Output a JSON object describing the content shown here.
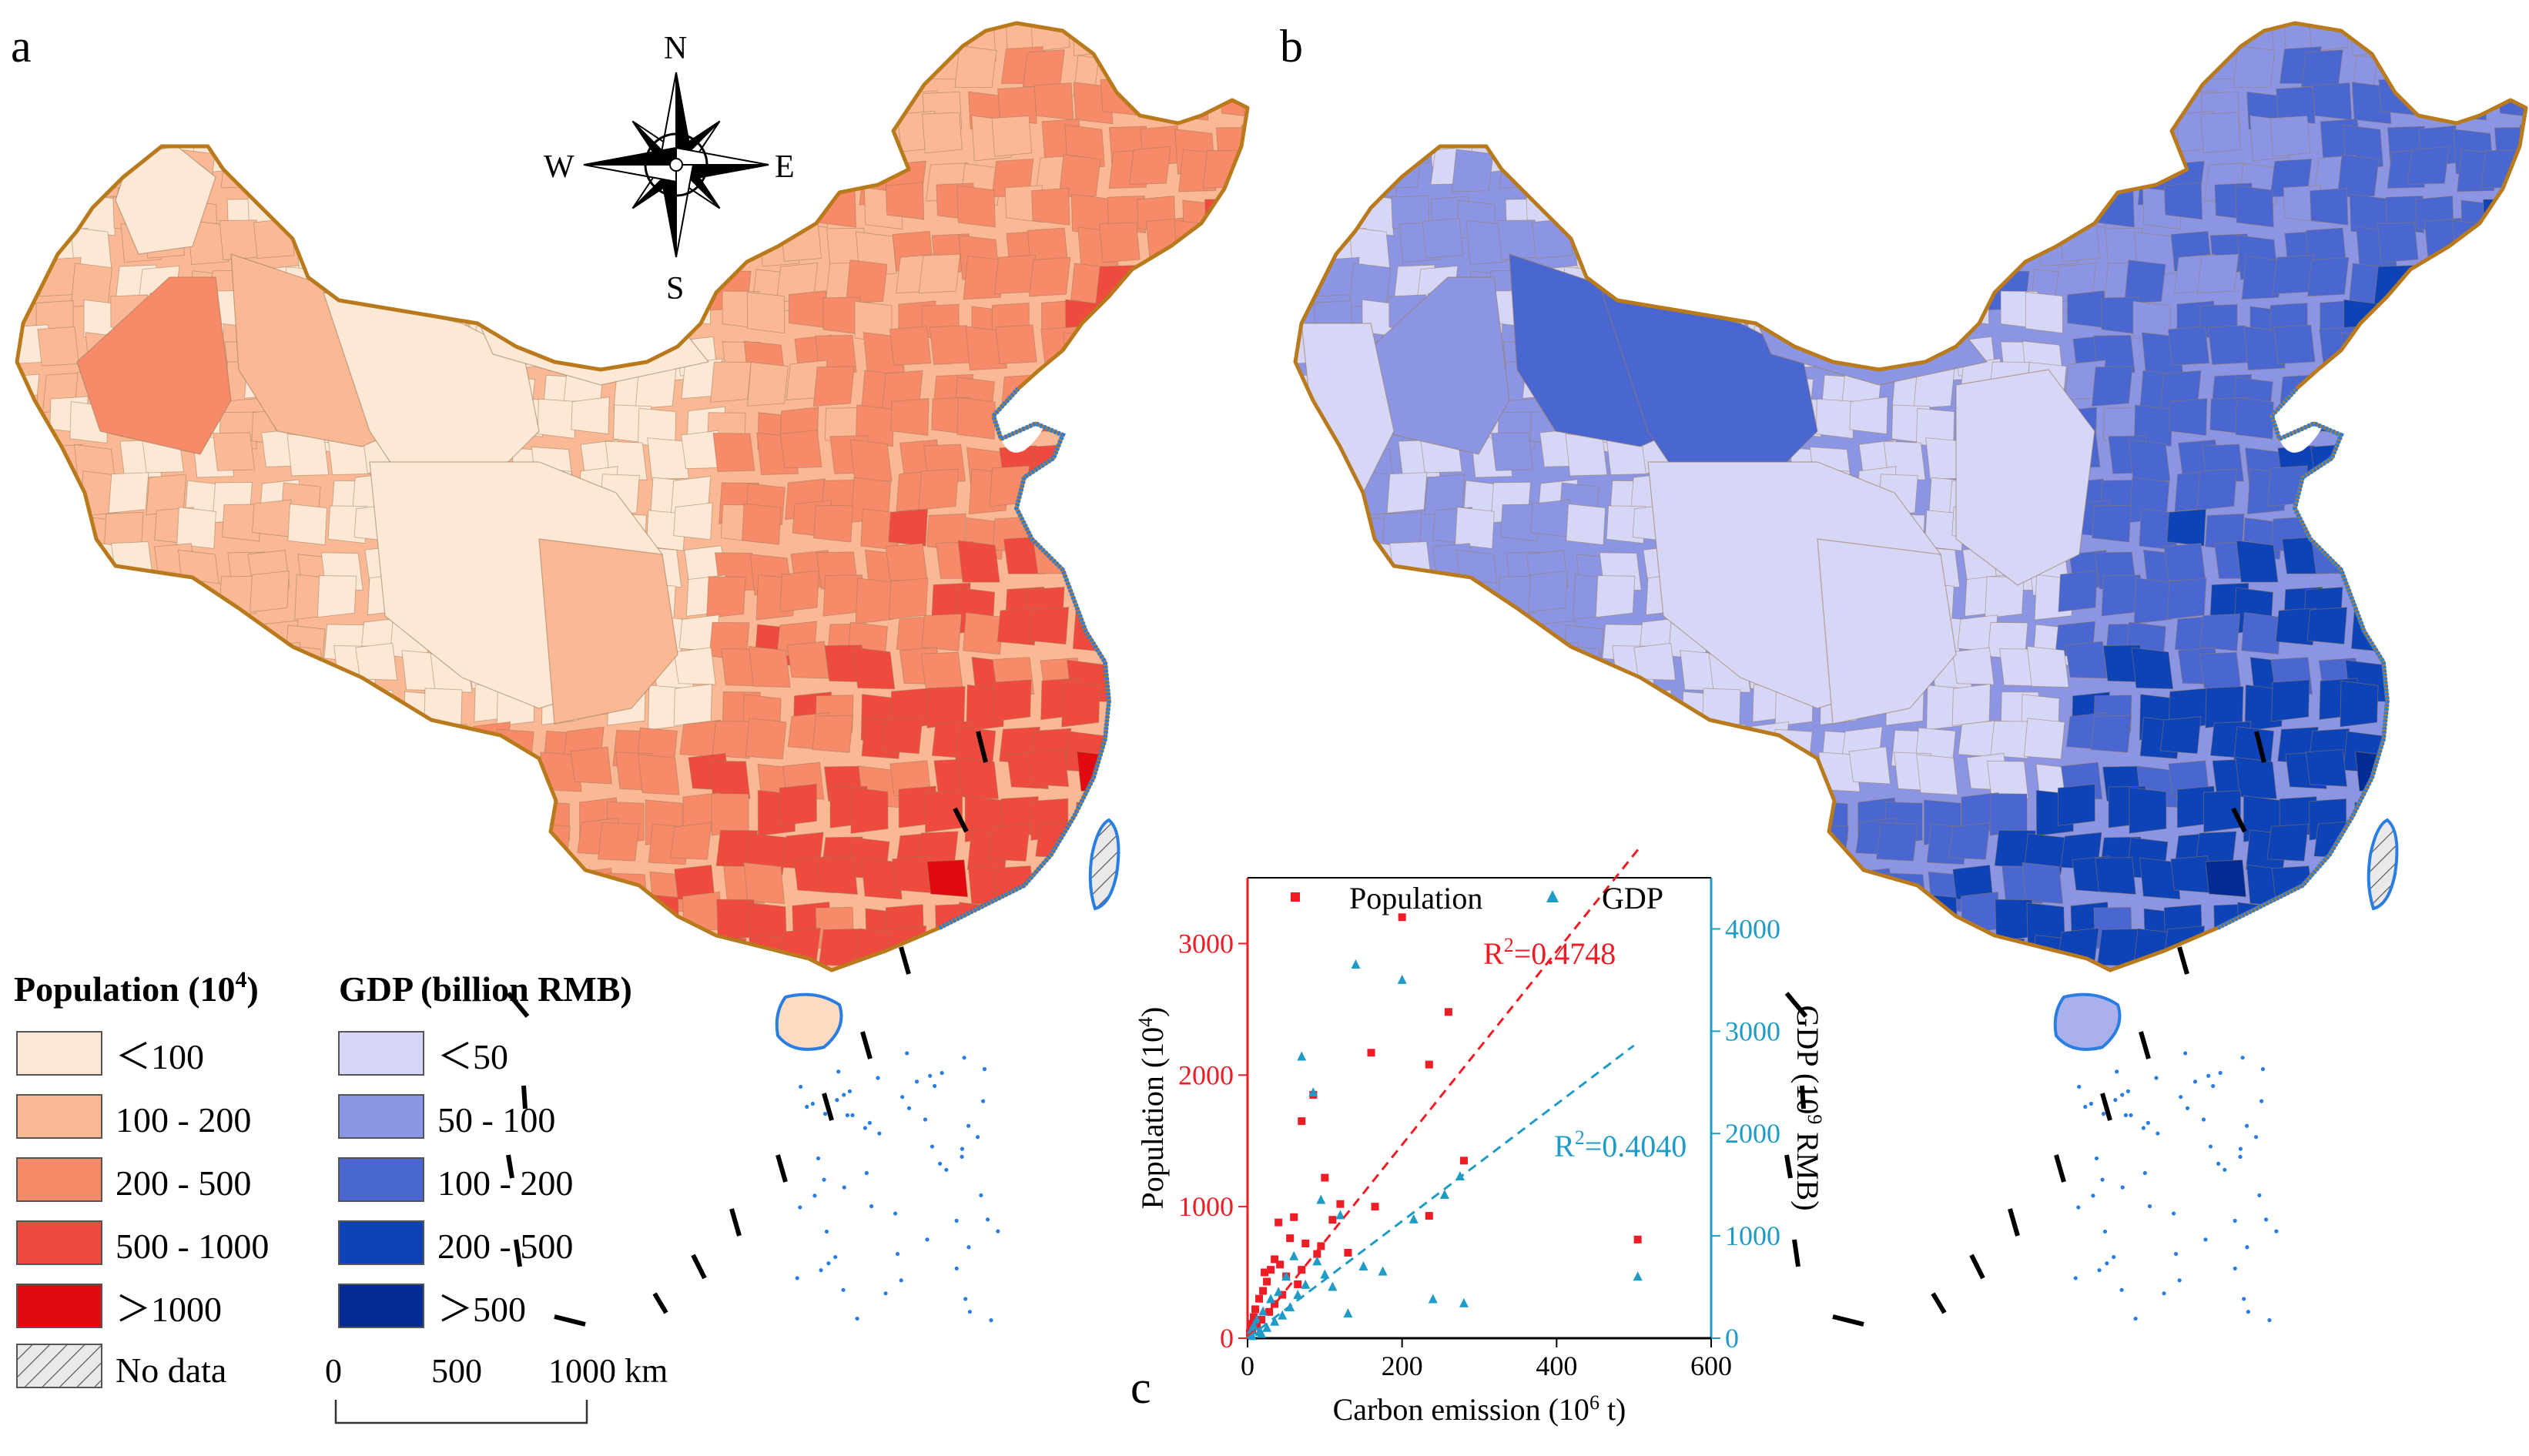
{
  "panels": {
    "a": "a",
    "b": "b",
    "c": "c"
  },
  "compass": {
    "n": "N",
    "s": "S",
    "e": "E",
    "w": "W"
  },
  "legend_population": {
    "title": "Population (10",
    "title_sup": "4",
    "title_end": ")",
    "items": [
      {
        "label": "＜100",
        "color": "#fde8d5"
      },
      {
        "label": "100 - 200",
        "color": "#fbb894"
      },
      {
        "label": "200 - 500",
        "color": "#f78a68"
      },
      {
        "label": "500 - 1000",
        "color": "#ef4a3e"
      },
      {
        "label": "＞1000",
        "color": "#e00a10"
      }
    ],
    "nodata": "No data"
  },
  "legend_gdp": {
    "title": "GDP (billion RMB)",
    "items": [
      {
        "label": "＜50",
        "color": "#d6d7f6"
      },
      {
        "label": "50 - 100",
        "color": "#8c95e3"
      },
      {
        "label": "100 - 200",
        "color": "#4a66d0"
      },
      {
        "label": "200 - 500",
        "color": "#0d43b6"
      },
      {
        "label": "＞500",
        "color": "#022c93"
      }
    ]
  },
  "scale_bar": {
    "t0": "0",
    "t1": "500",
    "t2": "1000 km"
  },
  "colors": {
    "border": "#b87a1c",
    "coast": "#2a7de1",
    "pop_axis": "#ee1c24",
    "gdp_axis": "#1f9bc8",
    "nodata_bg": "#e9e9e9"
  },
  "chart_data": {
    "type": "scatter",
    "xlabel": "Carbon emission (10",
    "xlabel_sup": "6",
    "xlabel_end": " t)",
    "ylabel_left": "Population (10",
    "ylabel_left_sup": "4",
    "ylabel_left_end": ")",
    "ylabel_right": "GDP (10",
    "ylabel_right_sup": "9",
    "ylabel_right_end": " RMB)",
    "xlim": [
      0,
      600
    ],
    "ylim_left": [
      0,
      3500
    ],
    "ylim_right": [
      0,
      4500
    ],
    "xticks": [
      0,
      200,
      400,
      600
    ],
    "yticks_left": [
      0,
      1000,
      2000,
      3000
    ],
    "yticks_right": [
      0,
      1000,
      2000,
      3000,
      4000
    ],
    "legend": [
      "Population",
      "GDP"
    ],
    "series": [
      {
        "name": "Population",
        "axis": "left",
        "marker": "square",
        "color": "#ee1c24",
        "r2_label": "R",
        "r2_value": "=0.4748",
        "fit": {
          "slope": 7.35,
          "intercept": 0,
          "x_end": 510
        },
        "points": [
          [
            505,
            750
          ],
          [
            200,
            3200
          ],
          [
            260,
            2480
          ],
          [
            235,
            2080
          ],
          [
            160,
            2170
          ],
          [
            85,
            1850
          ],
          [
            100,
            1220
          ],
          [
            120,
            1020
          ],
          [
            165,
            1000
          ],
          [
            280,
            1350
          ],
          [
            235,
            930
          ],
          [
            70,
            1650
          ],
          [
            60,
            920
          ],
          [
            40,
            880
          ],
          [
            55,
            760
          ],
          [
            75,
            720
          ],
          [
            35,
            600
          ],
          [
            90,
            640
          ],
          [
            30,
            520
          ],
          [
            50,
            470
          ],
          [
            25,
            430
          ],
          [
            65,
            410
          ],
          [
            20,
            360
          ],
          [
            45,
            330
          ],
          [
            15,
            300
          ],
          [
            35,
            260
          ],
          [
            10,
            220
          ],
          [
            28,
            200
          ],
          [
            8,
            160
          ],
          [
            18,
            140
          ],
          [
            5,
            110
          ],
          [
            12,
            90
          ],
          [
            6,
            60
          ],
          [
            3,
            40
          ],
          [
            22,
            500
          ],
          [
            42,
            560
          ],
          [
            70,
            520
          ],
          [
            95,
            700
          ],
          [
            110,
            900
          ],
          [
            130,
            650
          ]
        ]
      },
      {
        "name": "GDP",
        "axis": "right",
        "marker": "triangle",
        "color": "#1f9bc8",
        "r2_label": "R",
        "r2_value": "=0.4040",
        "fit": {
          "slope": 5.72,
          "intercept": 0,
          "x_end": 500
        },
        "points": [
          [
            505,
            600
          ],
          [
            275,
            1580
          ],
          [
            255,
            1400
          ],
          [
            215,
            1160
          ],
          [
            200,
            3500
          ],
          [
            140,
            3650
          ],
          [
            70,
            2750
          ],
          [
            85,
            2400
          ],
          [
            95,
            1350
          ],
          [
            120,
            1200
          ],
          [
            175,
            650
          ],
          [
            240,
            380
          ],
          [
            280,
            340
          ],
          [
            130,
            240
          ],
          [
            60,
            800
          ],
          [
            100,
            620
          ],
          [
            40,
            450
          ],
          [
            75,
            520
          ],
          [
            30,
            380
          ],
          [
            55,
            300
          ],
          [
            20,
            260
          ],
          [
            45,
            220
          ],
          [
            12,
            180
          ],
          [
            35,
            160
          ],
          [
            8,
            120
          ],
          [
            25,
            100
          ],
          [
            5,
            80
          ],
          [
            15,
            60
          ],
          [
            50,
            600
          ],
          [
            90,
            750
          ],
          [
            65,
            420
          ],
          [
            110,
            500
          ],
          [
            150,
            700
          ],
          [
            18,
            40
          ],
          [
            6,
            20
          ]
        ]
      }
    ]
  }
}
